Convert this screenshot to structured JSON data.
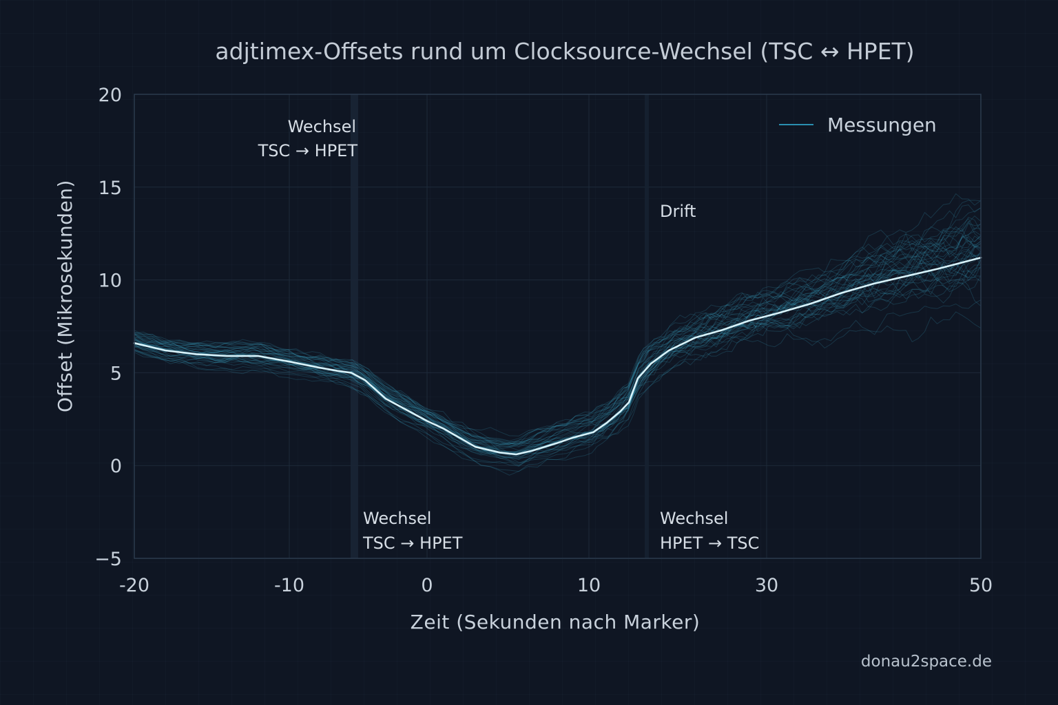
{
  "chart_data": {
    "type": "line",
    "title": "adjtimex-Offsets rund um Clocksource-Wechsel (TSC ↔ HPET)",
    "xlabel": "Zeit (Sekunden nach Marker)",
    "ylabel": "Offset (Mikrosekunden)",
    "x_ticks": [
      {
        "value": -20,
        "label": "-20"
      },
      {
        "value": -10,
        "label": "-10"
      },
      {
        "value": 0,
        "label": "0"
      },
      {
        "value": 10,
        "label": "10"
      },
      {
        "value": 30,
        "label": "30"
      },
      {
        "value": 50,
        "label": "50"
      }
    ],
    "y_ticks": [
      {
        "value": -5,
        "label": "−5"
      },
      {
        "value": 0,
        "label": "0"
      },
      {
        "value": 5,
        "label": "5"
      },
      {
        "value": 10,
        "label": "10"
      },
      {
        "value": 15,
        "label": "15"
      },
      {
        "value": 20,
        "label": "20"
      }
    ],
    "ylim": [
      -5,
      20
    ],
    "grid": true,
    "legend": {
      "position": "top-right",
      "entries": [
        "Messungen"
      ]
    },
    "series": [
      {
        "name": "Messungen",
        "individual_traces": 40,
        "x": [
          -20,
          -18,
          -16,
          -14,
          -12,
          -10,
          -8,
          -6.5,
          -5.5,
          -4.5,
          -3,
          -1,
          0,
          1,
          2,
          3,
          4.5,
          5.5,
          6.5,
          8,
          9,
          10.5,
          12,
          13.5,
          14.5,
          15.5,
          17,
          19,
          22,
          25,
          28,
          31,
          34,
          37,
          40,
          43,
          46,
          50
        ],
        "y": [
          6.6,
          6.2,
          6.0,
          5.9,
          5.9,
          5.6,
          5.3,
          5.1,
          5.0,
          4.6,
          3.6,
          2.8,
          2.4,
          2.0,
          1.5,
          1.0,
          0.7,
          0.6,
          0.8,
          1.2,
          1.5,
          1.8,
          2.3,
          2.9,
          3.4,
          4.7,
          5.5,
          6.2,
          6.9,
          7.3,
          7.8,
          8.2,
          8.7,
          9.3,
          9.8,
          10.2,
          10.6,
          11.2
        ],
        "spread": [
          1.0,
          1.0,
          1.0,
          1.0,
          1.0,
          1.0,
          1.0,
          1.0,
          1.0,
          1.0,
          1.0,
          1.0,
          1.0,
          1.0,
          1.0,
          1.0,
          1.1,
          1.2,
          1.3,
          1.3,
          1.3,
          1.3,
          1.3,
          1.3,
          1.3,
          1.3,
          1.3,
          1.4,
          1.5,
          1.6,
          1.7,
          1.8,
          2.0,
          2.2,
          2.4,
          2.7,
          3.0,
          3.3
        ]
      }
    ],
    "annotations": [
      {
        "x": -6.5,
        "lines": [
          "Wechsel",
          "TSC → HPET"
        ]
      },
      {
        "x": -5,
        "lines": [
          "Wechsel",
          "TSC → HPET"
        ]
      },
      {
        "x": 15,
        "lines": [
          "Drift"
        ]
      },
      {
        "x": 15,
        "lines": [
          "Wechsel",
          "HPET → TSC"
        ]
      }
    ],
    "colors": {
      "background": "#0f1623",
      "trace": "#3aa6c2",
      "mean": "#d8f3fb",
      "frame": "#2b3b4e",
      "marker_band": "#1a2535"
    }
  },
  "credit": "donau2space.de"
}
